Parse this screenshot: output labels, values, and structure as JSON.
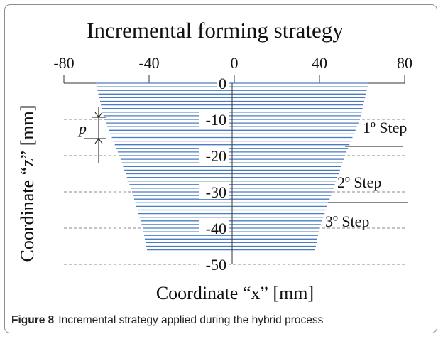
{
  "chart_data": {
    "type": "area",
    "title": "Incremental forming strategy",
    "xlabel": "Coordinate “x” [mm]",
    "ylabel": "Coordinate “z” [mm]",
    "xlim": [
      -80,
      80
    ],
    "ylim": [
      -50,
      0
    ],
    "x_ticks": [
      "-80",
      "-40",
      "0",
      "40",
      "80"
    ],
    "y_ticks": [
      "0",
      "-10",
      "-20",
      "-30",
      "-40",
      "-50"
    ],
    "y_tick_values": [
      0,
      -10,
      -20,
      -30,
      -40,
      -50
    ],
    "gridlines_z": [
      -10,
      -20,
      -30,
      -40,
      -50
    ],
    "grid": "horizontal dashed",
    "fill_color": "#4a7cc2",
    "profile": {
      "z": [
        0,
        -10,
        -20,
        -30,
        -40,
        -46
      ],
      "left_x": [
        -65,
        -61,
        -54,
        -48,
        -43,
        -41
      ],
      "right_x": [
        63,
        59,
        52,
        46,
        40,
        38
      ]
    },
    "step_increment_mm": 1,
    "pitch_label": "p",
    "steps": [
      {
        "label": "1º Step"
      },
      {
        "label": "2º Step"
      },
      {
        "label": "3º Step"
      }
    ]
  },
  "caption": {
    "figure_label": "Figure 8",
    "text": "Incremental strategy applied during the hybrid process"
  }
}
